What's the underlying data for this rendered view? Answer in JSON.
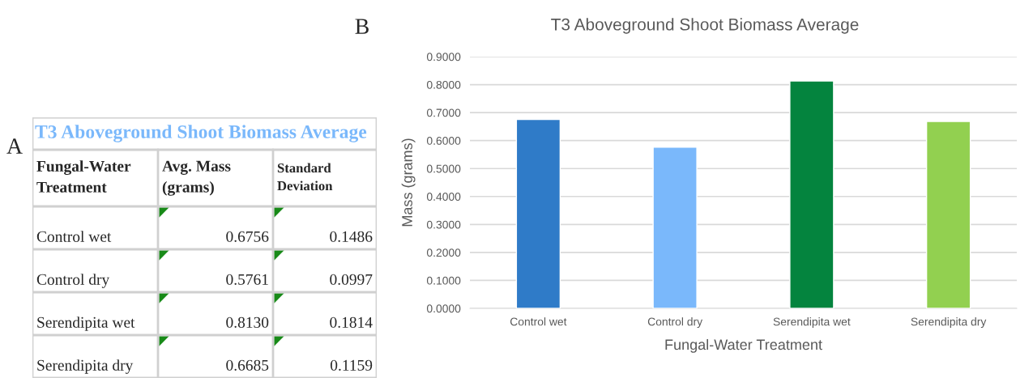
{
  "chart_data": [
    {
      "type": "other",
      "title": "T3 Aboveground Shoot Biomass Average",
      "annotations": [
        "A",
        "Fungal-Water Treatment",
        "Avg. Mass (grams)",
        "Standard Deviation",
        "Control wet",
        "0.6756",
        "0.1486",
        "Control dry",
        "0.5761",
        "0.0997",
        "Serendipita wet",
        "0.8130",
        "0.1814",
        "Serendipita dry",
        "0.6685",
        "0.1159"
      ]
    },
    {
      "type": "bar",
      "title": "T3 Aboveground Shoot Biomass Average",
      "xlabel": "Fungal-Water Treatment",
      "ylabel": "Mass (grams)",
      "categories": [
        "Control wet",
        "Control dry",
        "Serendipita wet",
        "Serendipita dry"
      ],
      "values": [
        0.6756,
        0.5761,
        0.813,
        0.6685
      ],
      "colors": [
        "#2f7bc8",
        "#7ab8fb",
        "#04843e",
        "#92d050"
      ],
      "ylim": [
        0,
        0.9
      ],
      "yticks": [
        {
          "value": 0,
          "label": "0.0000"
        },
        {
          "value": 0.1,
          "label": "0.1000"
        },
        {
          "value": 0.2,
          "label": "0.2000"
        },
        {
          "value": 0.3,
          "label": "0.3000"
        },
        {
          "value": 0.4,
          "label": "0.4000"
        },
        {
          "value": 0.5,
          "label": "0.5000"
        },
        {
          "value": 0.6,
          "label": "0.6000"
        },
        {
          "value": 0.7,
          "label": "0.7000"
        },
        {
          "value": 0.8,
          "label": "0.8000"
        },
        {
          "value": 0.9,
          "label": "0.9000"
        }
      ],
      "grid": "y",
      "annotations": [
        "B"
      ]
    }
  ]
}
